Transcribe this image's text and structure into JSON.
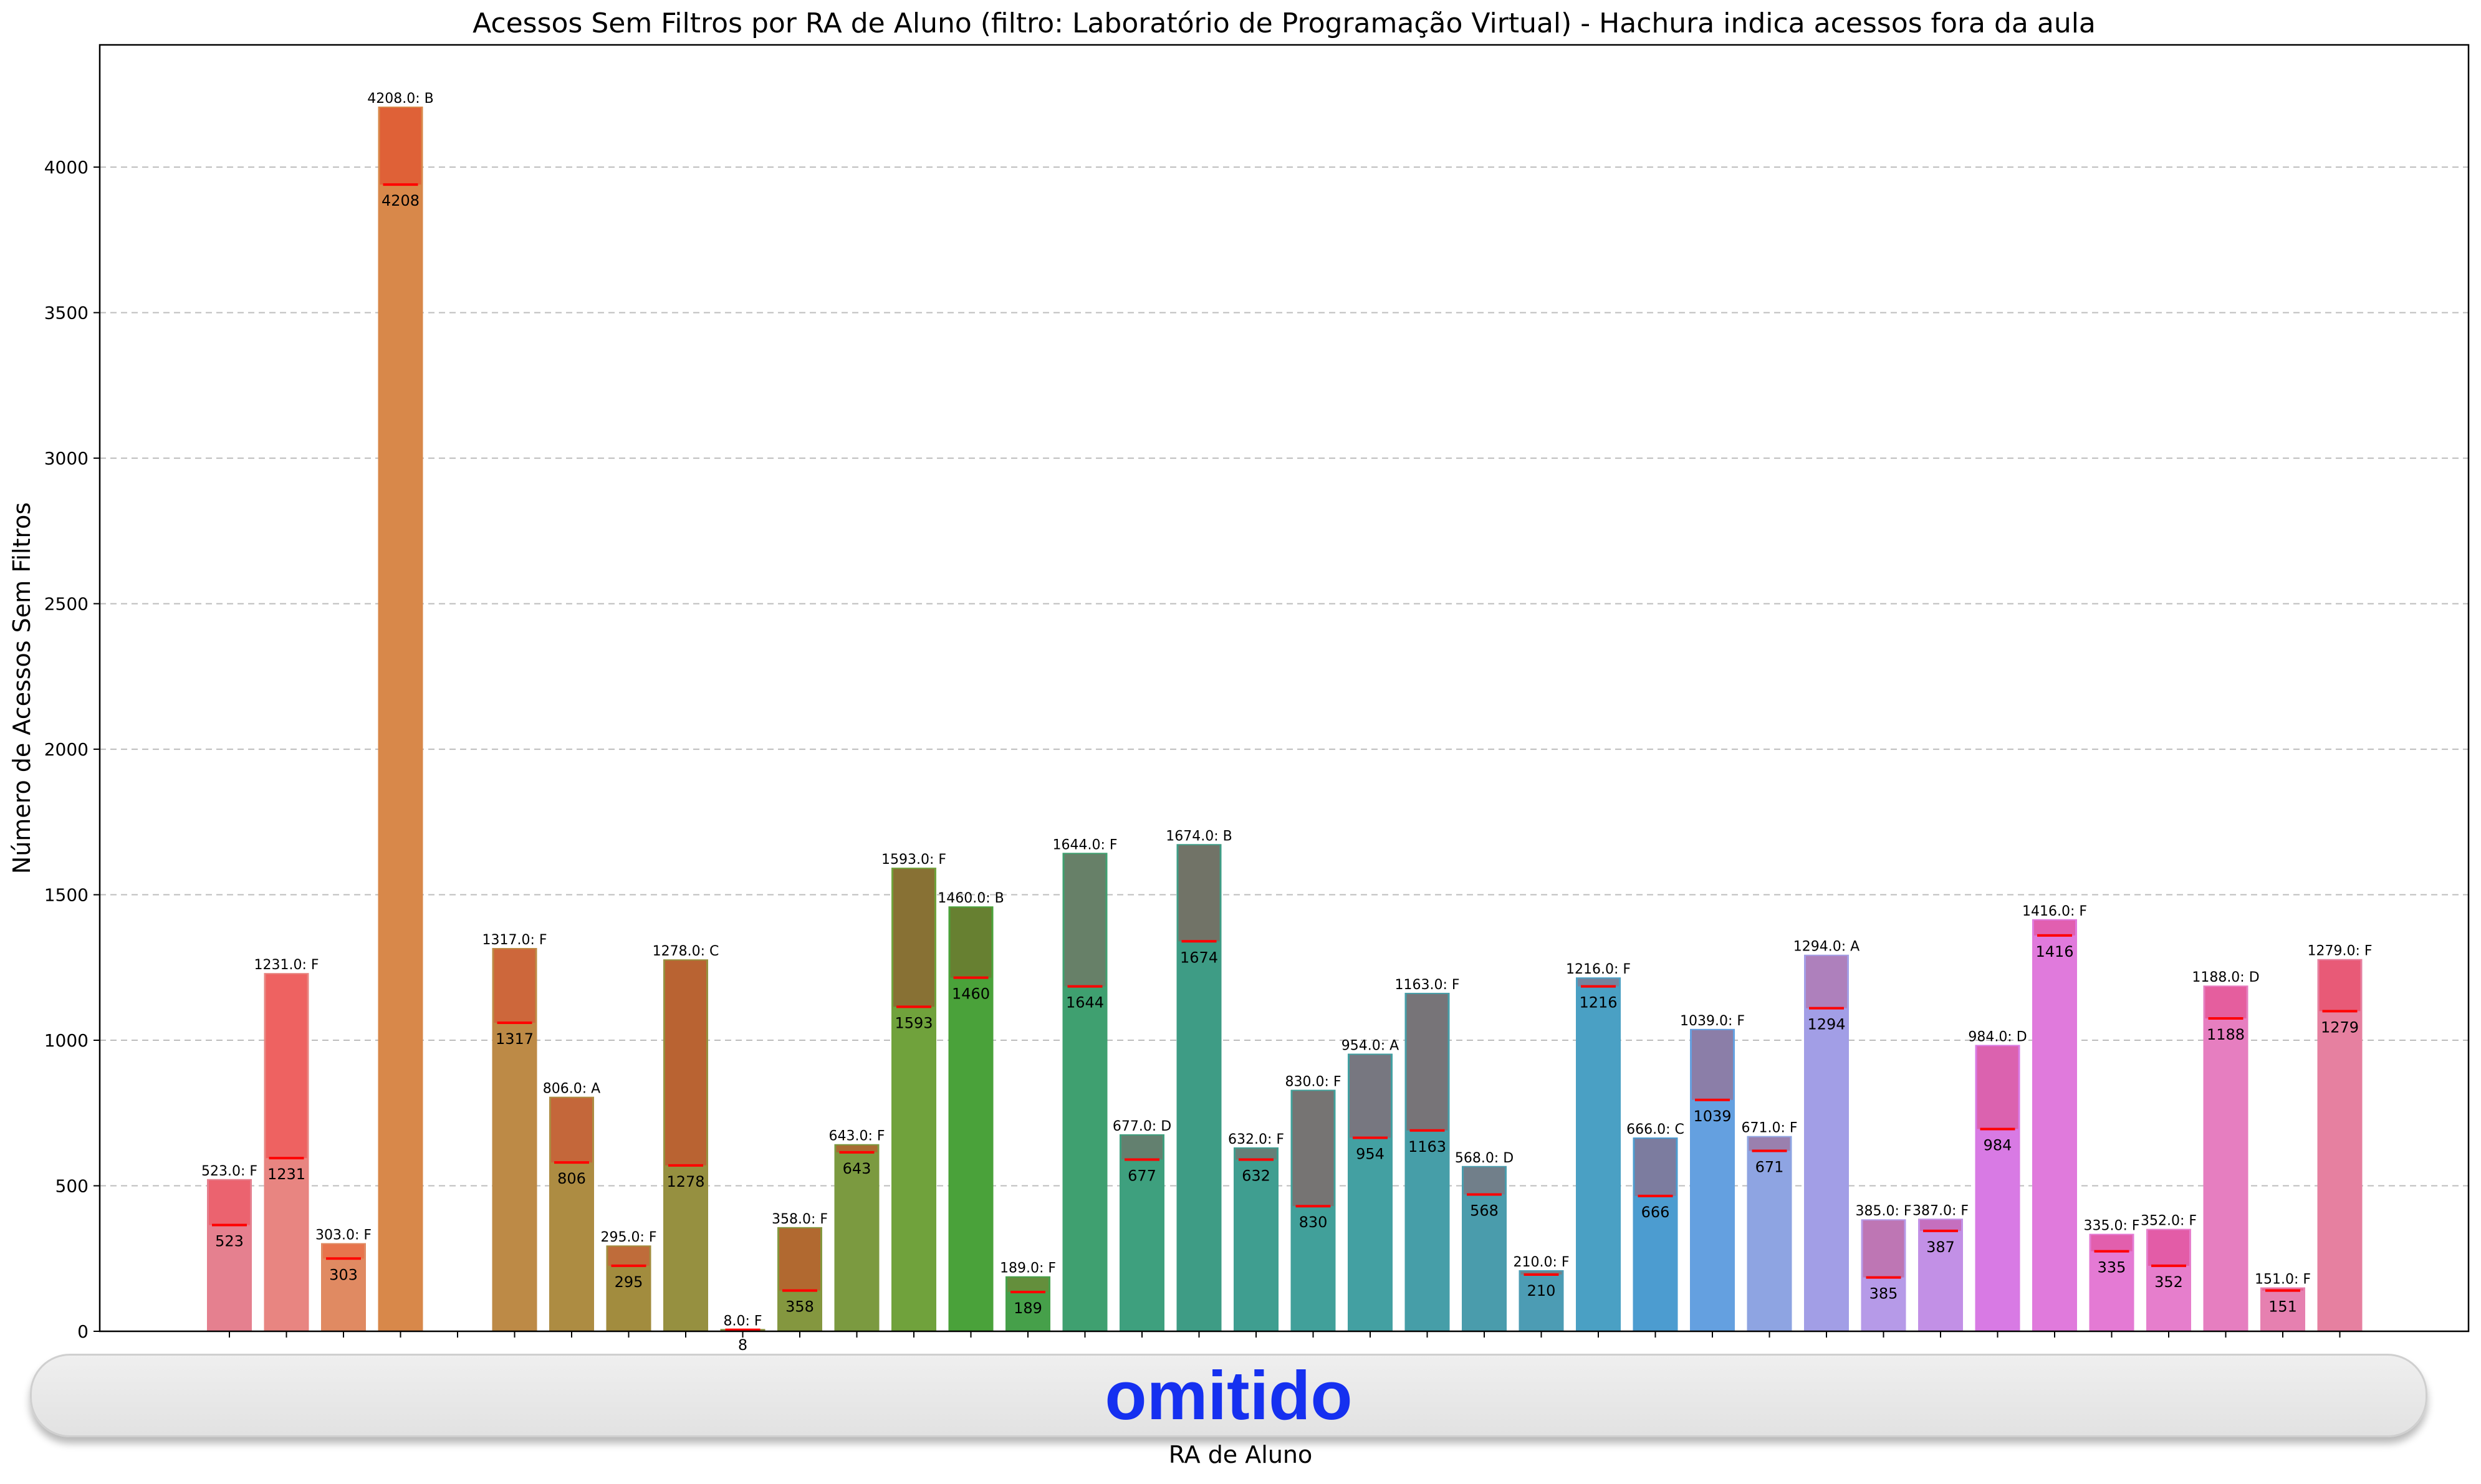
{
  "chart_data": {
    "type": "bar",
    "title": "Acessos Sem Filtros por RA de Aluno (filtro: Laboratório de Programação Virtual) - Hachura indica acessos fora da aula",
    "xlabel": "RA de Aluno",
    "ylabel": "Número de Acessos Sem Filtros",
    "ylim": [
      0,
      4420
    ],
    "yticks": [
      0,
      500,
      1000,
      1500,
      2000,
      2500,
      3000,
      3500,
      4000
    ],
    "grid": "y-dashed",
    "x_tick_labels": "omitido",
    "values": [
      523,
      1231,
      303,
      4208,
      0,
      1317,
      806,
      295,
      1278,
      8,
      358,
      643,
      1593,
      1460,
      189,
      1644,
      677,
      1674,
      632,
      830,
      954,
      1163,
      568,
      210,
      1216,
      666,
      1039,
      671,
      1294,
      385,
      387,
      984,
      1416,
      335,
      352,
      1188,
      151,
      1279
    ],
    "top_labels": [
      "523.0: F",
      "1231.0: F",
      "303.0: F",
      "4208.0: B",
      "",
      "1317.0: F",
      "806.0: A",
      "295.0: F",
      "1278.0: C",
      "8.0: F",
      "358.0: F",
      "643.0: F",
      "1593.0: F",
      "1460.0: B",
      "189.0: F",
      "1644.0: F",
      "677.0: D",
      "1674.0: B",
      "632.0: F",
      "830.0: F",
      "954.0: A",
      "1163.0: F",
      "568.0: D",
      "210.0: F",
      "1216.0: F",
      "666.0: C",
      "1039.0: F",
      "671.0: F",
      "1294.0: A",
      "385.0: F",
      "387.0: F",
      "984.0: D",
      "1416.0: F",
      "335.0: F",
      "352.0: F",
      "1188.0: D",
      "151.0: F",
      "1279.0: F"
    ],
    "inner_labels": [
      "523",
      "1231",
      "303",
      "4208",
      "",
      "1317",
      "806",
      "295",
      "1278",
      "8",
      "358",
      "643",
      "1593",
      "1460",
      "189",
      "1644",
      "677",
      "1674",
      "632",
      "830",
      "954",
      "1163",
      "568",
      "210",
      "1216",
      "666",
      "1039",
      "671",
      "1294",
      "385",
      "387",
      "984",
      "1416",
      "335",
      "352",
      "1188",
      "151",
      "1279"
    ],
    "in_class_marker": [
      365,
      595,
      250,
      3940,
      0,
      1060,
      580,
      225,
      570,
      5,
      140,
      615,
      1115,
      1215,
      135,
      1185,
      590,
      1340,
      590,
      430,
      665,
      690,
      470,
      195,
      1185,
      465,
      795,
      620,
      1110,
      185,
      345,
      695,
      1360,
      275,
      225,
      1075,
      140,
      1100
    ],
    "colors": [
      "#e5808f",
      "#e88581",
      "#e08a62",
      "#d8884a",
      "#cc8a48",
      "#bd8a46",
      "#ad8c42",
      "#a28c3e",
      "#969040",
      "#8d9442",
      "#84973f",
      "#7b9a40",
      "#70a23c",
      "#4aa23a",
      "#46a04a",
      "#3fa070",
      "#3ea07e",
      "#3e9c85",
      "#3f9e90",
      "#41a09a",
      "#43a0a2",
      "#469ea8",
      "#4a9cac",
      "#4c9cb4",
      "#4aa0c4",
      "#4c9cd0",
      "#64a0e0",
      "#8ea4e2",
      "#a29ee6",
      "#b69ae8",
      "#c290e6",
      "#d87ae4",
      "#e07adc",
      "#e47ad4",
      "#e67ecc",
      "#e67ec0",
      "#e680b0",
      "#e680a0"
    ],
    "hatch_colors": [
      "#ec5e6a",
      "#ee5c5c",
      "#e8704a",
      "#e05a34",
      "",
      "#d0603a",
      "#c86038",
      "#c4663a",
      "#c05c30",
      "#c0582e",
      "#b8602e",
      "#b06430",
      "#8c6832",
      "#6c7a30",
      "#6a8c3a",
      "#6e7a66",
      "#6a7a6c",
      "#7a6c62",
      "#6c7a74",
      "#806c6c",
      "#80707a",
      "#806c70",
      "#787a84",
      "#7a7a80",
      "#7a7f98",
      "#857796",
      "#92789e",
      "#9c7aa4",
      "#b07ab4",
      "#c070aa",
      "#c66ab6",
      "#dc5ea6",
      "#e05aa8",
      "#e25aa6",
      "#e256a0",
      "#e45898",
      "#e45a88",
      "#e85470"
    ],
    "hatch_fill": "semi-transparent overlay above in-class marker",
    "marker_color": "#ff0000"
  },
  "ui": {
    "omitted_label": "omitido"
  }
}
